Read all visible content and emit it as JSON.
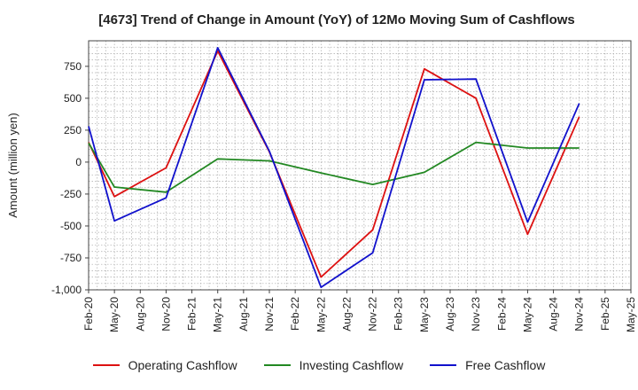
{
  "chart_data": {
    "type": "line",
    "title": "[4673]  Trend of Change in Amount (YoY) of 12Mo Moving Sum of Cashflows",
    "xlabel": "",
    "ylabel": "Amount (million yen)",
    "ylim": [
      -1000,
      950
    ],
    "yticks": [
      750,
      500,
      250,
      0,
      -250,
      -500,
      -750,
      -1000
    ],
    "ytick_labels": [
      "750",
      "500",
      "250",
      "0",
      "-250",
      "-500",
      "-750",
      "-1,000"
    ],
    "categories": [
      "Feb-20",
      "May-20",
      "Aug-20",
      "Nov-20",
      "Feb-21",
      "May-21",
      "Aug-21",
      "Nov-21",
      "Feb-22",
      "May-22",
      "Aug-22",
      "Nov-22",
      "Feb-23",
      "May-23",
      "Aug-23",
      "Nov-23",
      "Feb-24",
      "May-24",
      "Aug-24",
      "Nov-24",
      "Feb-25",
      "May-25"
    ],
    "grid": true,
    "legend_position": "bottom",
    "series": [
      {
        "name": "Operating Cashflow",
        "color": "#dd1111",
        "values": [
          155,
          -270,
          null,
          -45,
          null,
          870,
          null,
          80,
          null,
          -900,
          null,
          -530,
          null,
          730,
          null,
          500,
          null,
          -565,
          null,
          355,
          null,
          null
        ]
      },
      {
        "name": "Investing Cashflow",
        "color": "#228822",
        "values": [
          150,
          -195,
          null,
          -235,
          null,
          25,
          null,
          10,
          null,
          -85,
          null,
          -175,
          null,
          -80,
          null,
          155,
          null,
          110,
          null,
          110,
          null,
          null
        ]
      },
      {
        "name": "Free Cashflow",
        "color": "#1111cc",
        "values": [
          280,
          -460,
          null,
          -280,
          null,
          895,
          null,
          85,
          null,
          -980,
          null,
          -710,
          null,
          645,
          null,
          650,
          null,
          -470,
          null,
          460,
          null,
          null
        ]
      }
    ]
  }
}
